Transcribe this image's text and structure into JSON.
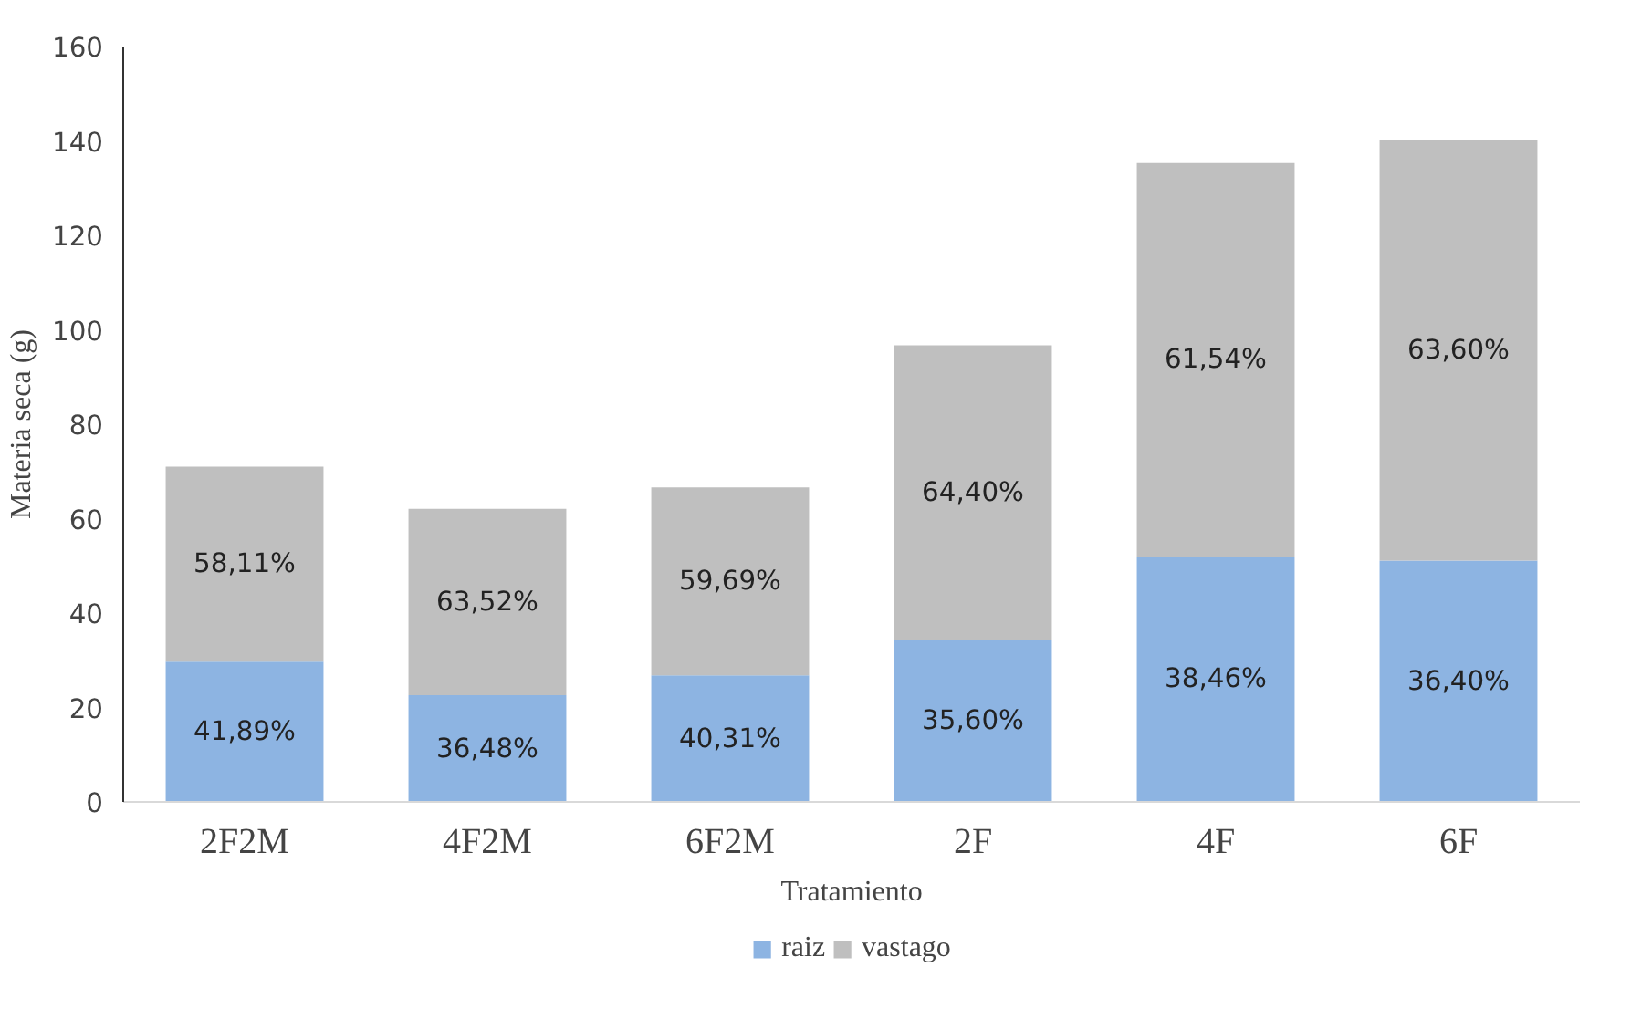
{
  "chart_data": {
    "type": "bar",
    "stacked": true,
    "xlabel": "Tratamiento",
    "ylabel": "Materia seca (g)",
    "categories": [
      "2F2M",
      "4F2M",
      "6F2M",
      "2F",
      "4F",
      "6F"
    ],
    "series": [
      {
        "name": "raiz",
        "color": "#8db4e2",
        "values": [
          29.7,
          22.6,
          26.8,
          34.4,
          52.0,
          51.1
        ]
      },
      {
        "name": "vastago",
        "color": "#bfbfbf",
        "values": [
          41.3,
          39.5,
          39.8,
          62.3,
          83.3,
          89.2
        ]
      }
    ],
    "annotations": [
      "41,89%",
      "36,48%",
      "40,31%",
      "35,60%",
      "38,46%",
      "36,40%",
      "58,11%",
      "63,52%",
      "59,69%",
      "64,40%",
      "61,54%",
      "63,60%"
    ],
    "ylim": [
      0,
      160
    ],
    "yticks": [
      0,
      20,
      40,
      60,
      80,
      100,
      120,
      140,
      160
    ],
    "grid": false,
    "legend": "bottom"
  }
}
